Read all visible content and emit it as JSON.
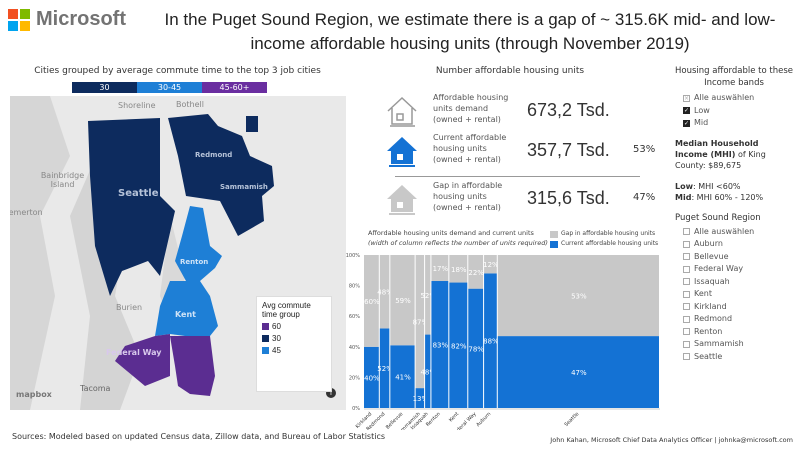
{
  "brand": {
    "name": "Microsoft",
    "colors": [
      "#f25022",
      "#7fba00",
      "#00a4ef",
      "#ffb900"
    ]
  },
  "title": "In the Puget Sound Region, we estimate there is a gap of ~ 315.6K mid- and low-income affordable housing units (through November 2019)",
  "map": {
    "title": "Cities grouped by average commute time to the top 3 job cities",
    "legend_bar": [
      {
        "label": "30",
        "color": "#0d2b5e"
      },
      {
        "label": "30-45",
        "color": "#1e7fd6"
      },
      {
        "label": "45-60+",
        "color": "#6a2ea0"
      }
    ],
    "place_labels": [
      "Shoreline",
      "Bothell",
      "Bainbridge Island",
      "Bremerton",
      "Burien",
      "Tacoma"
    ],
    "city_labels": [
      "Seattle",
      "Redmond",
      "Sammamish",
      "Renton",
      "Kent",
      "Federal Way"
    ],
    "legend": {
      "title": "Avg commute time group",
      "items": [
        {
          "label": "60",
          "color": "#5b2d91"
        },
        {
          "label": "30",
          "color": "#0d2b5e"
        },
        {
          "label": "45",
          "color": "#1e7fd6"
        }
      ]
    },
    "attribution": "mapbox",
    "info_icon": "info-icon"
  },
  "kpis": {
    "title": "Number affordable housing units",
    "items": [
      {
        "label": "Affordable housing units demand (owned + rental)",
        "value": "673,2 Tsd.",
        "pct": "",
        "icon": "house-outline-icon"
      },
      {
        "label": "Current affordable housing units (owned + rental)",
        "value": "357,7 Tsd.",
        "pct": "53%",
        "icon": "house-blue-icon"
      },
      {
        "label": "Gap in affordable housing units (owned + rental)",
        "value": "315,6 Tsd.",
        "pct": "47%",
        "icon": "house-gray-icon"
      }
    ]
  },
  "chart_data": {
    "type": "bar",
    "subtype": "stacked-100-variable-width",
    "title": "Affordable housing units demand and current units",
    "subtitle": "(width of column reflects the number of units required)",
    "categories": [
      "Kirkland",
      "Redmond",
      "Bellevue",
      "Sammamish",
      "Issaquah",
      "Renton",
      "Kent",
      "Federal Way",
      "Auburn",
      "Seattle"
    ],
    "relative_demand": [
      15,
      10,
      24,
      9,
      6,
      17,
      18,
      15,
      13,
      154
    ],
    "series": [
      {
        "name": "Current affordable housing units",
        "color": "#1472d4",
        "values": [
          40,
          52,
          41,
          13,
          48,
          83,
          82,
          78,
          88,
          47
        ]
      },
      {
        "name": "Gap in affordable housing units",
        "color": "#c8c8c8",
        "values": [
          60,
          48,
          59,
          87,
          52,
          17,
          18,
          22,
          12,
          53
        ]
      }
    ],
    "ylim": [
      0,
      100
    ],
    "yticks": [
      "0%",
      "20%",
      "40%",
      "60%",
      "80%",
      "100%"
    ],
    "legend": "top-right"
  },
  "side": {
    "income_header": "Housing affordable to these Income bands",
    "income_options": [
      {
        "label": "Alle auswählen",
        "checked": "partial"
      },
      {
        "label": "Low",
        "checked": true
      },
      {
        "label": "Mid",
        "checked": true
      }
    ],
    "mhi_bold": "Median Household Income (MHI)",
    "mhi_rest": " of King County: $89,675",
    "low_bold": "Low",
    "low_text": ": MHI <60%",
    "mid_bold": "Mid",
    "mid_text": ": MHI 60% - 120%",
    "region_header": "Puget Sound Region",
    "regions": [
      "Alle auswählen",
      "Auburn",
      "Bellevue",
      "Federal Way",
      "Issaquah",
      "Kent",
      "Kirkland",
      "Redmond",
      "Renton",
      "Sammamish",
      "Seattle"
    ]
  },
  "footer": {
    "sources": "Sources: Modeled based on updated Census data, Zillow data, and Bureau of Labor Statistics",
    "credit": "John Kahan, Microsoft Chief Data Analytics Officer | johnka@microsoft.com"
  }
}
